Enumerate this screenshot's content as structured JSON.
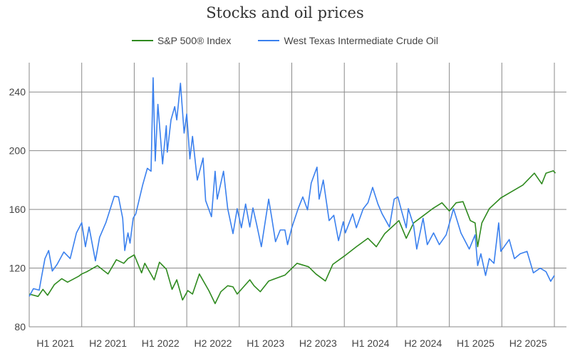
{
  "chart_data": {
    "type": "line",
    "title": "Stocks and oil prices",
    "xlabel": "",
    "ylabel": "",
    "x_tick_labels": [
      "H1 2021",
      "H2 2021",
      "H1 2022",
      "H2 2022",
      "H1 2023",
      "H2 2023",
      "H1 2024",
      "H2 2024",
      "H1 2025",
      "H2 2025"
    ],
    "y_ticks": [
      80,
      120,
      160,
      200,
      240
    ],
    "ylim": [
      80,
      260
    ],
    "xlim": [
      2021.0,
      2026.115
    ],
    "x_unit": "decimal year",
    "grid": true,
    "legend_position": "top",
    "series": [
      {
        "name": "S&P 500® Index",
        "color": "#2f8a1f",
        "points": [
          [
            2021.0,
            102.3
          ],
          [
            2021.085,
            100.7
          ],
          [
            2021.13,
            105.5
          ],
          [
            2021.175,
            101.5
          ],
          [
            2021.24,
            108.8
          ],
          [
            2021.31,
            112.8
          ],
          [
            2021.365,
            110.4
          ],
          [
            2021.47,
            114.4
          ],
          [
            2021.5,
            116
          ],
          [
            2021.55,
            117.6
          ],
          [
            2021.65,
            121.7
          ],
          [
            2021.75,
            116
          ],
          [
            2021.83,
            125.7
          ],
          [
            2021.9,
            123.3
          ],
          [
            2021.94,
            126.5
          ],
          [
            2022.0,
            129
          ],
          [
            2022.07,
            116.8
          ],
          [
            2022.1,
            123.3
          ],
          [
            2022.19,
            112
          ],
          [
            2022.24,
            124
          ],
          [
            2022.305,
            119.3
          ],
          [
            2022.36,
            105.5
          ],
          [
            2022.405,
            112
          ],
          [
            2022.46,
            98.3
          ],
          [
            2022.51,
            104.7
          ],
          [
            2022.555,
            102.3
          ],
          [
            2022.62,
            116
          ],
          [
            2022.71,
            104.7
          ],
          [
            2022.77,
            95.8
          ],
          [
            2022.825,
            103.9
          ],
          [
            2022.89,
            108
          ],
          [
            2022.94,
            107.2
          ],
          [
            2022.98,
            102.3
          ],
          [
            2023.1,
            112
          ],
          [
            2023.14,
            108
          ],
          [
            2023.2,
            103.9
          ],
          [
            2023.28,
            111.2
          ],
          [
            2023.435,
            115.2
          ],
          [
            2023.55,
            123.3
          ],
          [
            2023.66,
            120.9
          ],
          [
            2023.73,
            116
          ],
          [
            2023.82,
            111.2
          ],
          [
            2023.89,
            122.5
          ],
          [
            2024.0,
            128.2
          ],
          [
            2024.115,
            134.6
          ],
          [
            2024.225,
            140.3
          ],
          [
            2024.305,
            134.6
          ],
          [
            2024.385,
            143.5
          ],
          [
            2024.52,
            152.4
          ],
          [
            2024.59,
            140.3
          ],
          [
            2024.66,
            150.8
          ],
          [
            2024.75,
            155.6
          ],
          [
            2024.84,
            160.5
          ],
          [
            2024.93,
            164.5
          ],
          [
            2025.0,
            158.9
          ],
          [
            2025.065,
            164.5
          ],
          [
            2025.13,
            165.3
          ],
          [
            2025.2,
            152.4
          ],
          [
            2025.245,
            150.8
          ],
          [
            2025.27,
            134.6
          ],
          [
            2025.31,
            150.8
          ],
          [
            2025.38,
            160.5
          ],
          [
            2025.49,
            167.8
          ],
          [
            2025.585,
            171.8
          ],
          [
            2025.7,
            176.6
          ],
          [
            2025.81,
            184.7
          ],
          [
            2025.88,
            177.4
          ],
          [
            2025.92,
            184.7
          ],
          [
            2025.99,
            186.3
          ],
          [
            2026.01,
            184.7
          ]
        ]
      },
      {
        "name": "West Texas Intermediate Crude Oil",
        "color": "#3a80ee",
        "points": [
          [
            2021.0,
            100.7
          ],
          [
            2021.04,
            106
          ],
          [
            2021.095,
            105
          ],
          [
            2021.12,
            115
          ],
          [
            2021.15,
            126.5
          ],
          [
            2021.185,
            132
          ],
          [
            2021.22,
            118
          ],
          [
            2021.265,
            122.5
          ],
          [
            2021.33,
            131
          ],
          [
            2021.39,
            126.5
          ],
          [
            2021.45,
            144
          ],
          [
            2021.5,
            151
          ],
          [
            2021.535,
            134.6
          ],
          [
            2021.57,
            148
          ],
          [
            2021.63,
            125
          ],
          [
            2021.67,
            141
          ],
          [
            2021.73,
            151
          ],
          [
            2021.81,
            169
          ],
          [
            2021.85,
            168.5
          ],
          [
            2021.89,
            154
          ],
          [
            2021.91,
            132
          ],
          [
            2021.94,
            144
          ],
          [
            2021.96,
            137
          ],
          [
            2021.99,
            154
          ],
          [
            2022.015,
            157
          ],
          [
            2022.08,
            176.6
          ],
          [
            2022.125,
            188
          ],
          [
            2022.16,
            186
          ],
          [
            2022.18,
            249.7
          ],
          [
            2022.2,
            193
          ],
          [
            2022.225,
            231.6
          ],
          [
            2022.27,
            191
          ],
          [
            2022.305,
            217
          ],
          [
            2022.315,
            199
          ],
          [
            2022.35,
            221
          ],
          [
            2022.385,
            230
          ],
          [
            2022.405,
            221
          ],
          [
            2022.44,
            246
          ],
          [
            2022.475,
            212
          ],
          [
            2022.5,
            225
          ],
          [
            2022.53,
            194.4
          ],
          [
            2022.555,
            209.8
          ],
          [
            2022.6,
            180
          ],
          [
            2022.655,
            195
          ],
          [
            2022.68,
            166
          ],
          [
            2022.735,
            155
          ],
          [
            2022.77,
            186
          ],
          [
            2022.79,
            167
          ],
          [
            2022.85,
            186
          ],
          [
            2022.89,
            160.5
          ],
          [
            2022.94,
            143.5
          ],
          [
            2022.98,
            160.5
          ],
          [
            2023.02,
            147.5
          ],
          [
            2023.06,
            163.7
          ],
          [
            2023.1,
            148
          ],
          [
            2023.13,
            161
          ],
          [
            2023.165,
            150
          ],
          [
            2023.21,
            134.6
          ],
          [
            2023.28,
            167
          ],
          [
            2023.31,
            154
          ],
          [
            2023.345,
            138
          ],
          [
            2023.39,
            146
          ],
          [
            2023.435,
            146
          ],
          [
            2023.46,
            136
          ],
          [
            2023.5,
            147.5
          ],
          [
            2023.56,
            160.5
          ],
          [
            2023.605,
            168.5
          ],
          [
            2023.65,
            159.7
          ],
          [
            2023.685,
            178
          ],
          [
            2023.74,
            188.8
          ],
          [
            2023.76,
            167
          ],
          [
            2023.8,
            180
          ],
          [
            2023.855,
            152.4
          ],
          [
            2023.9,
            156
          ],
          [
            2023.945,
            138.7
          ],
          [
            2023.99,
            151.6
          ],
          [
            2024.01,
            144
          ],
          [
            2024.08,
            157
          ],
          [
            2024.115,
            147.5
          ],
          [
            2024.18,
            160.5
          ],
          [
            2024.225,
            164.5
          ],
          [
            2024.27,
            175
          ],
          [
            2024.32,
            163.7
          ],
          [
            2024.36,
            157
          ],
          [
            2024.43,
            148
          ],
          [
            2024.475,
            167
          ],
          [
            2024.51,
            168.5
          ],
          [
            2024.545,
            159
          ],
          [
            2024.59,
            147.5
          ],
          [
            2024.61,
            160.5
          ],
          [
            2024.66,
            149
          ],
          [
            2024.69,
            133
          ],
          [
            2024.75,
            154
          ],
          [
            2024.79,
            136
          ],
          [
            2024.85,
            144
          ],
          [
            2024.905,
            136
          ],
          [
            2024.97,
            142.7
          ],
          [
            2025.04,
            160.5
          ],
          [
            2025.11,
            144
          ],
          [
            2025.19,
            133
          ],
          [
            2025.245,
            142.7
          ],
          [
            2025.27,
            121.7
          ],
          [
            2025.3,
            129.8
          ],
          [
            2025.345,
            115
          ],
          [
            2025.38,
            126.5
          ],
          [
            2025.425,
            123.3
          ],
          [
            2025.47,
            150.8
          ],
          [
            2025.49,
            131.4
          ],
          [
            2025.57,
            139.5
          ],
          [
            2025.62,
            126.5
          ],
          [
            2025.675,
            129.8
          ],
          [
            2025.74,
            131.4
          ],
          [
            2025.8,
            116.8
          ],
          [
            2025.865,
            120
          ],
          [
            2025.92,
            117.6
          ],
          [
            2025.965,
            111
          ],
          [
            2026.0,
            115
          ]
        ]
      }
    ]
  }
}
